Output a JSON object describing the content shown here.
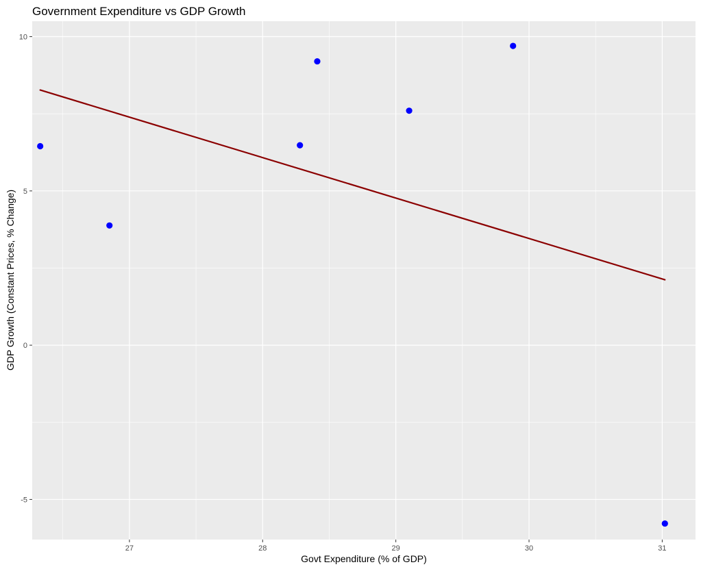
{
  "chart_data": {
    "type": "scatter",
    "title": "Government Expenditure vs GDP Growth",
    "xlabel": "Govt Expenditure (% of GDP)",
    "ylabel": "GDP Growth (Constant Prices, % Change)",
    "xlim": [
      26.27,
      31.25
    ],
    "ylim": [
      -6.3,
      10.5
    ],
    "x_ticks": [
      27,
      28,
      29,
      30,
      31
    ],
    "y_ticks": [
      -5,
      0,
      5,
      10
    ],
    "grid": true,
    "points": [
      {
        "x": 26.33,
        "y": 6.45
      },
      {
        "x": 26.85,
        "y": 3.88
      },
      {
        "x": 28.28,
        "y": 6.48
      },
      {
        "x": 28.41,
        "y": 9.2
      },
      {
        "x": 29.1,
        "y": 7.6
      },
      {
        "x": 29.88,
        "y": 9.7
      },
      {
        "x": 31.02,
        "y": -5.78
      }
    ],
    "trend_line": {
      "x": [
        26.33,
        31.02
      ],
      "y": [
        8.27,
        2.12
      ]
    },
    "colors": {
      "points": "#0000ff",
      "trend_line": "#8b0000",
      "panel": "#ebebeb",
      "grid": "#ffffff",
      "tick": "#333333"
    }
  }
}
